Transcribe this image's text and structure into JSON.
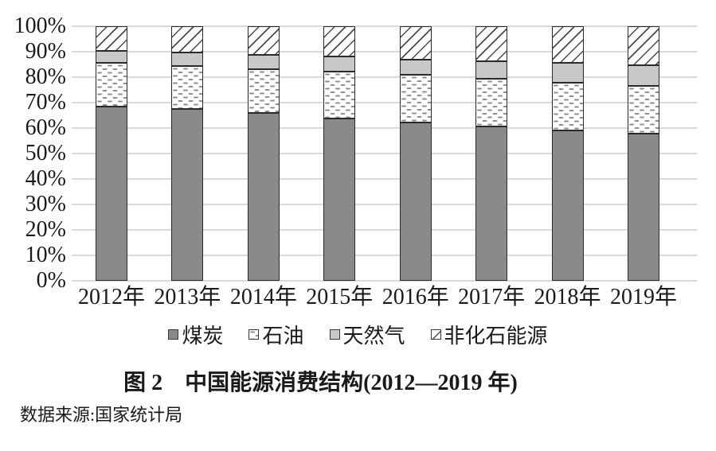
{
  "figure": {
    "title": "图 2　中国能源消费结构(2012—2019 年)",
    "source": "数据来源:国家统计局"
  },
  "chart_data": {
    "type": "bar",
    "subtype": "stacked-100-percent",
    "title": "图 2　中国能源消费结构(2012—2019 年)",
    "source": "数据来源:国家统计局",
    "xlabel": "",
    "ylabel": "",
    "ylim": [
      0,
      100
    ],
    "grid": true,
    "legend_position": "bottom",
    "yticks": [
      "0%",
      "10%",
      "20%",
      "30%",
      "40%",
      "50%",
      "60%",
      "70%",
      "80%",
      "90%",
      "100%"
    ],
    "categories": [
      "2012年",
      "2013年",
      "2014年",
      "2015年",
      "2016年",
      "2017年",
      "2018年",
      "2019年"
    ],
    "series": [
      {
        "key": "coal",
        "name": "煤炭",
        "pattern": "solid-dark-gray",
        "color": "#8a8a8a",
        "values": [
          68.5,
          67.4,
          65.8,
          63.8,
          62.2,
          60.6,
          59.0,
          57.7
        ]
      },
      {
        "key": "oil",
        "name": "石油",
        "pattern": "white-dashes",
        "color": "#ffffff",
        "values": [
          17.0,
          17.1,
          17.3,
          18.4,
          18.7,
          18.9,
          18.9,
          19.0
        ]
      },
      {
        "key": "gas",
        "name": "天然气",
        "pattern": "solid-light-gray",
        "color": "#c8c8c8",
        "values": [
          4.8,
          5.3,
          5.6,
          5.8,
          6.1,
          6.9,
          7.6,
          8.0
        ]
      },
      {
        "key": "nonfossil",
        "name": "非化石能源",
        "pattern": "diagonal-hatch",
        "color": "#ffffff",
        "values": [
          9.7,
          10.2,
          11.3,
          12.0,
          13.0,
          13.6,
          14.5,
          15.3
        ]
      }
    ],
    "colors": {
      "gridline": "#d9d9d9",
      "bar_border": "#2a2a2a",
      "text": "#1a1a1a"
    }
  }
}
